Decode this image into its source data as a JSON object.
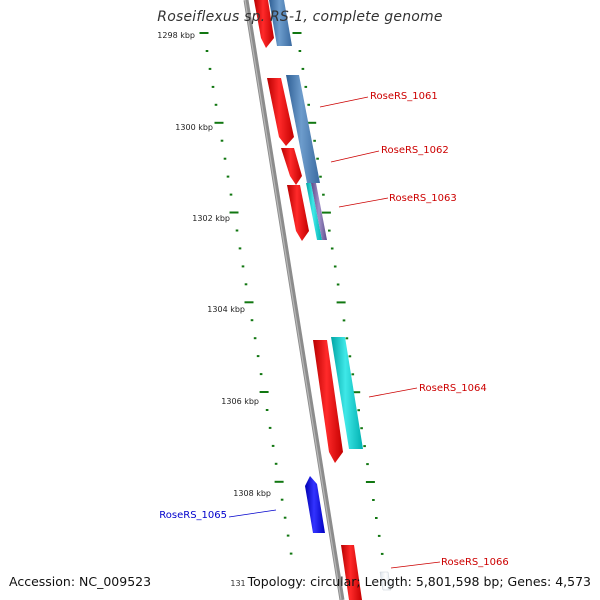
{
  "title": "Roseiflexus sp. RS-1, complete genome",
  "footer": {
    "accession": "Accession: NC_009523",
    "topology": "Topology: circular; Length: 5,801,598 bp; Genes: 4,573",
    "cut_tick_label": "131"
  },
  "ruler": {
    "unit": "kbp",
    "labels": [
      "1298 kbp",
      "1300 kbp",
      "1302 kbp",
      "1304 kbp",
      "1306 kbp",
      "1308 kbp"
    ]
  },
  "colors": {
    "backbone": "#8a8a8a",
    "tick": "#117711",
    "label_red": "#cc0000",
    "label_blue": "#0000cc",
    "feature_red": "#ee1111",
    "feature_steelblue": "#4a7fb5",
    "feature_cyan": "#11cccc",
    "feature_purple": "#7a6aa8",
    "feature_blue": "#1111ee",
    "feature_white": "#ffffff"
  },
  "gene_labels": [
    {
      "text": "RoseRS_1061",
      "color": "red"
    },
    {
      "text": "RoseRS_1062",
      "color": "red"
    },
    {
      "text": "RoseRS_1063",
      "color": "red"
    },
    {
      "text": "RoseRS_1064",
      "color": "red"
    },
    {
      "text": "RoseRS_1065",
      "color": "blue"
    },
    {
      "text": "RoseRS_1066",
      "color": "red"
    }
  ]
}
